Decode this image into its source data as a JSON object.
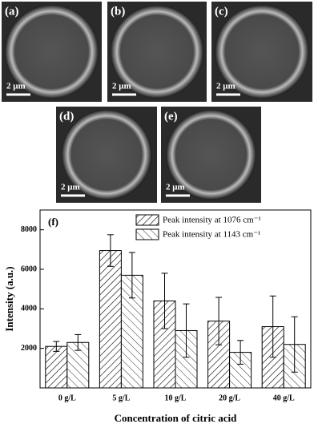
{
  "panels": [
    {
      "label": "(a)",
      "scale": "2 μm"
    },
    {
      "label": "(b)",
      "scale": "2 μm"
    },
    {
      "label": "(c)",
      "scale": "2 μm"
    },
    {
      "label": "(d)",
      "scale": "2 μm"
    },
    {
      "label": "(e)",
      "scale": "2 μm"
    }
  ],
  "chart_data": {
    "type": "bar",
    "panel_label": "(f)",
    "x_label": "Concentration of citric acid",
    "y_label": "Intensity (a.u.)",
    "categories": [
      "0 g/L",
      "5 g/L",
      "10 g/L",
      "20 g/L",
      "40 g/L"
    ],
    "series": [
      {
        "name": "Peak intensity at 1076 cm⁻¹",
        "color": "#000000",
        "values": [
          2100,
          6950,
          4400,
          3380,
          3100
        ],
        "errors": [
          250,
          800,
          1400,
          1200,
          1550
        ]
      },
      {
        "name": "Peak intensity at 1143 cm⁻¹",
        "color": "#000000",
        "values": [
          2300,
          5700,
          2900,
          1800,
          2200
        ],
        "errors": [
          400,
          1150,
          1350,
          600,
          1400
        ]
      }
    ],
    "ylim": [
      0,
      9000
    ],
    "yticks": [
      2000,
      4000,
      6000,
      8000
    ],
    "legend": "top-right"
  }
}
